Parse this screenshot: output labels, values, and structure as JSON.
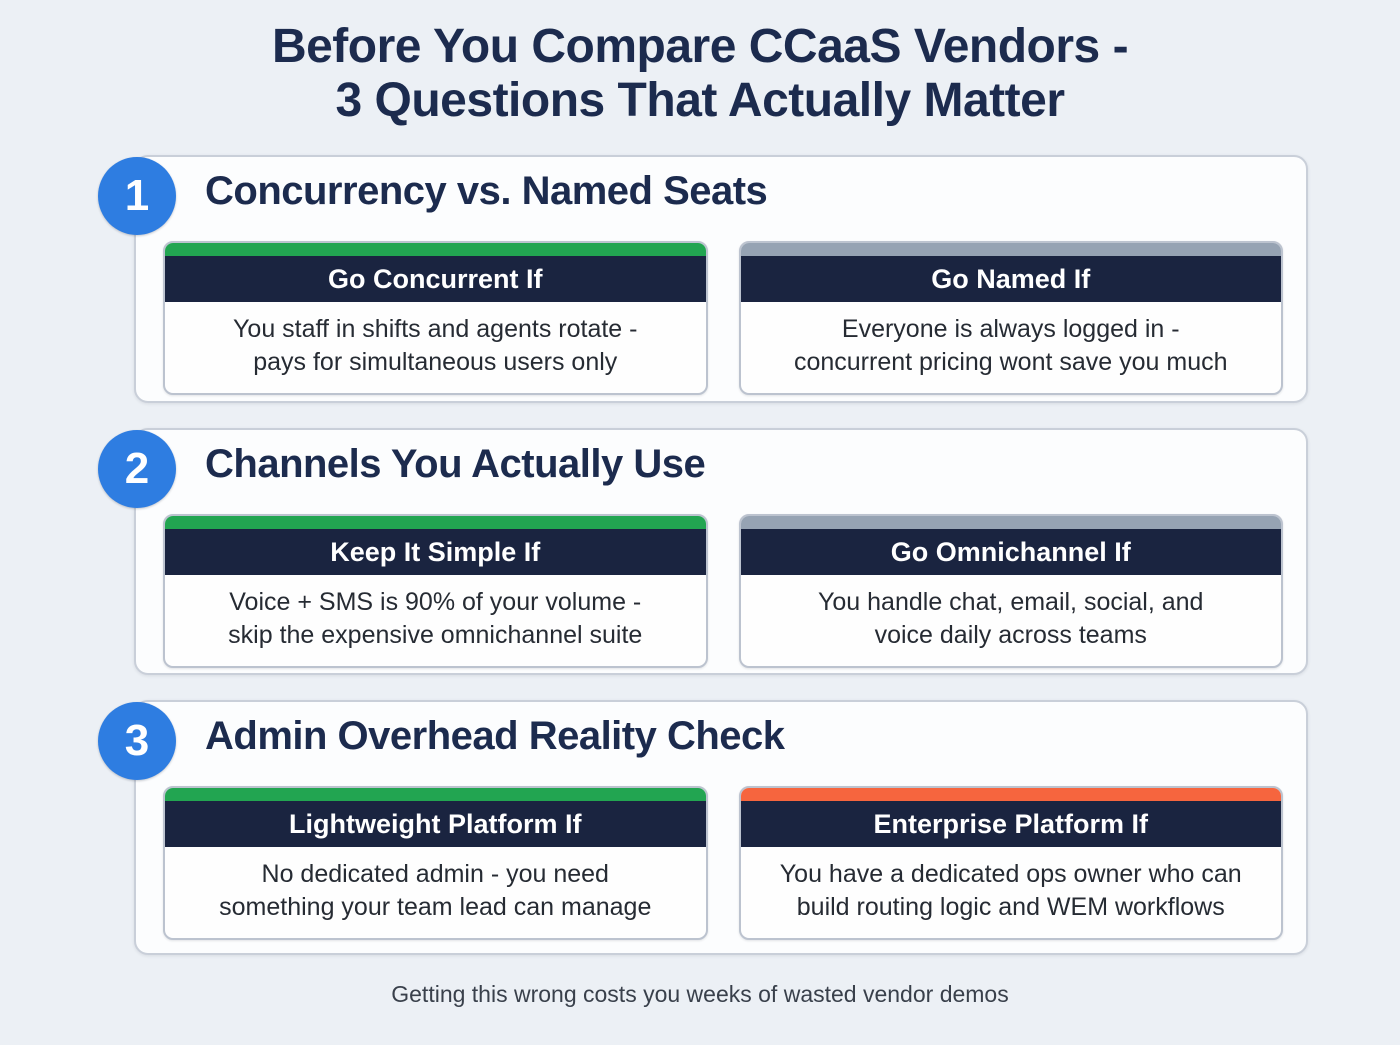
{
  "title": {
    "line1": "Before You Compare CCaaS Vendors -",
    "line2": "3 Questions That Actually Matter"
  },
  "footer": "Getting this wrong costs you weeks of wasted vendor demos",
  "colors": {
    "background": "#ECF0F5",
    "panel_border": "#C9CFD9",
    "heading_navy": "#1C2B4E",
    "card_header_navy": "#1A2440",
    "badge_blue": "#2E7DE1",
    "accent_green": "#22A551",
    "accent_gray": "#96A3B3",
    "accent_orange": "#F6653E"
  },
  "sections": [
    {
      "number": "1",
      "heading": "Concurrency vs. Named Seats",
      "cards": [
        {
          "accent": "green",
          "header": "Go Concurrent If",
          "body_line1": "You staff in shifts and agents rotate -",
          "body_line2": "pays for simultaneous users only"
        },
        {
          "accent": "gray",
          "header": "Go Named If",
          "body_line1": "Everyone is always logged in -",
          "body_line2": "concurrent pricing wont save you much"
        }
      ]
    },
    {
      "number": "2",
      "heading": "Channels You Actually Use",
      "cards": [
        {
          "accent": "green",
          "header": "Keep It Simple If",
          "body_line1": "Voice + SMS is 90% of your volume -",
          "body_line2": "skip the expensive omnichannel suite"
        },
        {
          "accent": "gray",
          "header": "Go Omnichannel If",
          "body_line1": "You handle chat, email, social, and",
          "body_line2": "voice daily across teams"
        }
      ]
    },
    {
      "number": "3",
      "heading": "Admin Overhead Reality Check",
      "cards": [
        {
          "accent": "green",
          "header": "Lightweight Platform If",
          "body_line1": "No dedicated admin - you need",
          "body_line2": "something your team lead can manage"
        },
        {
          "accent": "orange",
          "header": "Enterprise Platform If",
          "body_line1": "You have a dedicated ops owner who can",
          "body_line2": "build routing logic and WEM workflows"
        }
      ]
    }
  ]
}
